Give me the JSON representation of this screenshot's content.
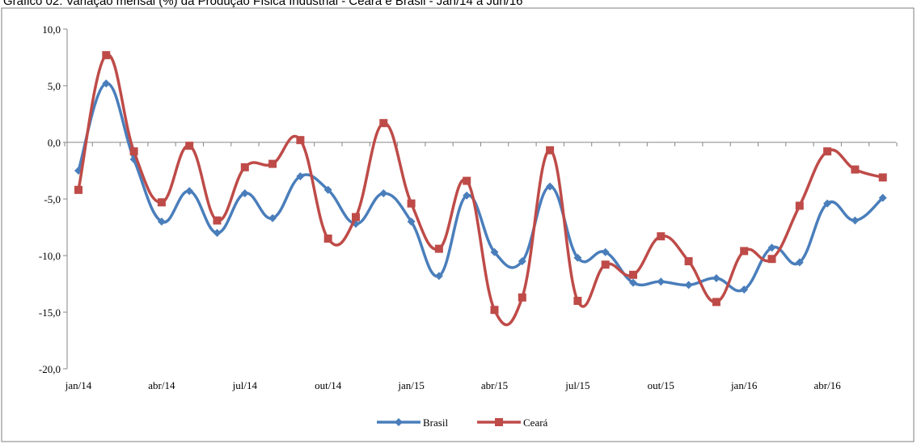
{
  "chart_data": {
    "type": "line",
    "title": "Gráfico 02: Variação mensal (%) da Produção Física Industrial - Ceará e Brasil - Jan/14 a Jun/16",
    "xlabel": "",
    "ylabel": "",
    "ylim": [
      -20,
      10
    ],
    "y_ticks": [
      "10,0",
      "5,0",
      "0,0",
      "-5,0",
      "-10,0",
      "-15,0",
      "-20,0"
    ],
    "y_tick_values": [
      10,
      5,
      0,
      -5,
      -10,
      -15,
      -20
    ],
    "x_tick_labels": [
      "jan/14",
      "abr/14",
      "jul/14",
      "out/14",
      "jan/15",
      "abr/15",
      "jul/15",
      "out/15",
      "jan/16",
      "abr/16"
    ],
    "x_tick_indices": [
      0,
      3,
      6,
      9,
      12,
      15,
      18,
      21,
      24,
      27
    ],
    "categories": [
      "jan/14",
      "fev/14",
      "mar/14",
      "abr/14",
      "mai/14",
      "jun/14",
      "jul/14",
      "ago/14",
      "set/14",
      "out/14",
      "nov/14",
      "dez/14",
      "jan/15",
      "fev/15",
      "mar/15",
      "abr/15",
      "mai/15",
      "jun/15",
      "jul/15",
      "ago/15",
      "set/15",
      "out/15",
      "nov/15",
      "dez/15",
      "jan/16",
      "fev/16",
      "mar/16",
      "abr/16",
      "mai/16",
      "jun/16"
    ],
    "grid": false,
    "legend_position": "bottom-center",
    "series": [
      {
        "name": "Brasil",
        "color": "#4a7ebb",
        "marker": "diamond",
        "values": [
          -2.5,
          5.2,
          -1.5,
          -7.0,
          -4.3,
          -8.0,
          -4.5,
          -6.7,
          -3.0,
          -4.2,
          -7.2,
          -4.5,
          -7.0,
          -11.8,
          -4.7,
          -9.7,
          -10.5,
          -3.9,
          -10.2,
          -9.7,
          -12.4,
          -12.3,
          -12.6,
          -12.0,
          -13.0,
          -9.3,
          -10.6,
          -5.4,
          -6.9,
          -4.9
        ]
      },
      {
        "name": "Ceará",
        "color": "#be4b48",
        "marker": "square",
        "values": [
          -4.2,
          7.7,
          -0.8,
          -5.3,
          -0.3,
          -6.9,
          -2.2,
          -1.9,
          0.2,
          -8.5,
          -6.6,
          1.7,
          -5.4,
          -9.4,
          -3.4,
          -14.8,
          -13.7,
          -0.7,
          -14.0,
          -10.8,
          -11.7,
          -8.3,
          -10.5,
          -14.1,
          -9.6,
          -10.3,
          -5.6,
          -0.8,
          -2.4,
          -3.1
        ]
      }
    ]
  }
}
